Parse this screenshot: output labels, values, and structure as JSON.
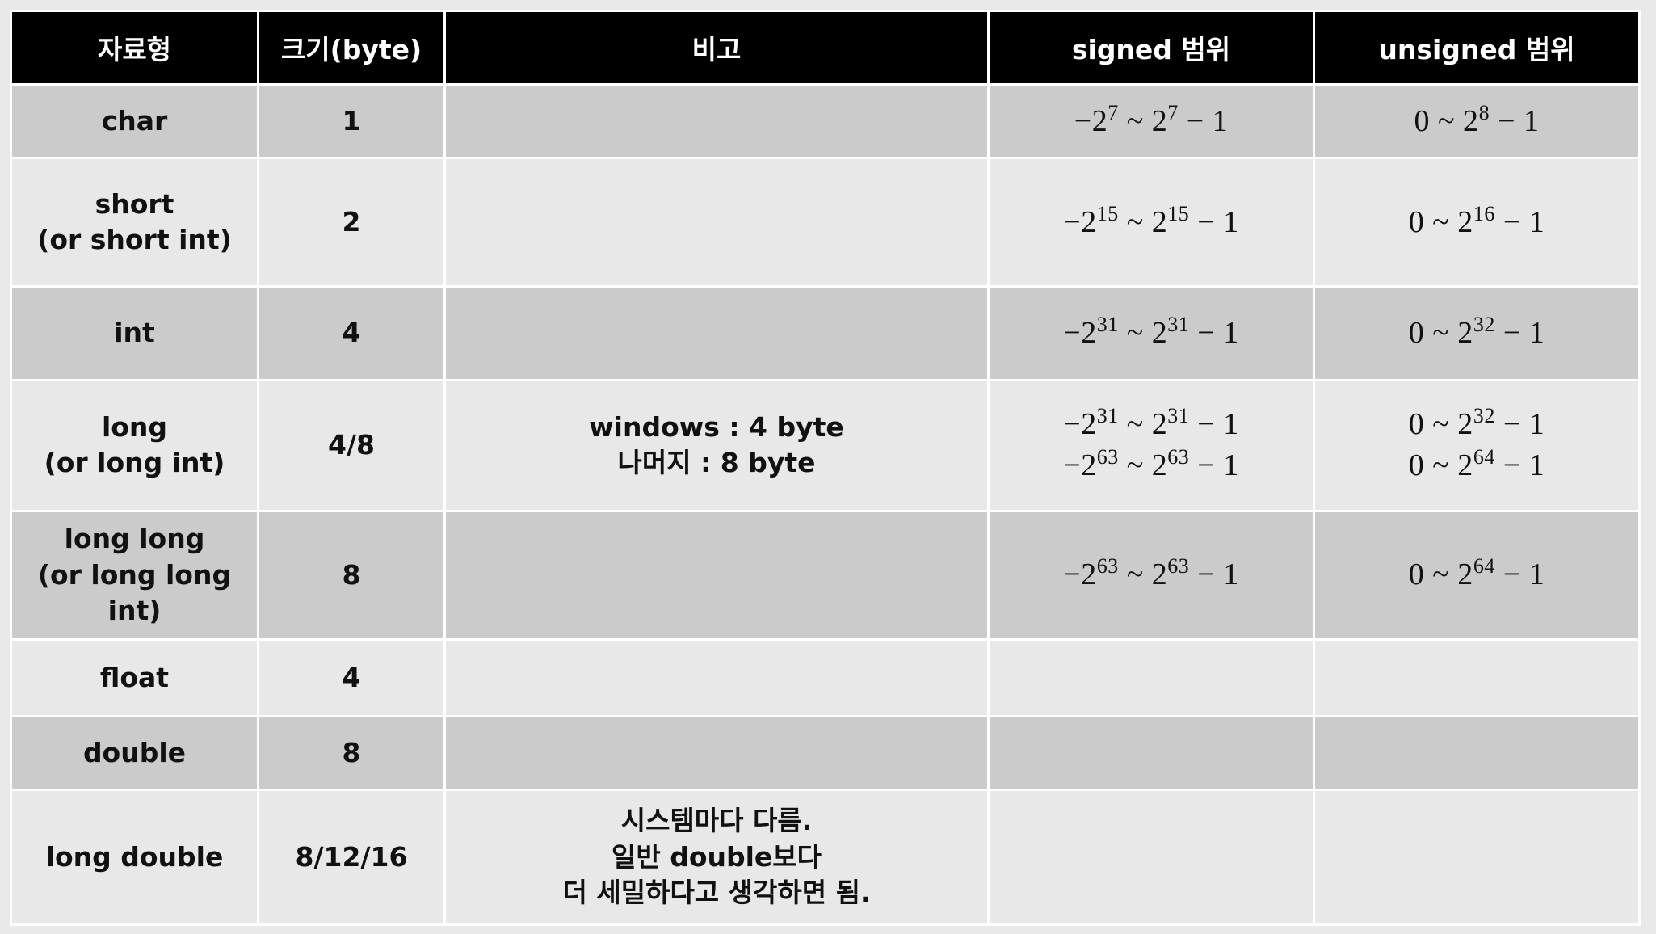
{
  "headers": [
    "자료형",
    "크기(byte)",
    "비고",
    "signed 범위",
    "unsigned 범위"
  ],
  "colors": {
    "header_bg": "#000000",
    "row_dark": "#cbcbcb",
    "row_light": "#e8e8e8",
    "border": "#ffffff"
  },
  "rows": [
    {
      "type": [
        "char"
      ],
      "size": "1",
      "note": [],
      "signed": [
        "−2^7 ~ 2^7 − 1"
      ],
      "unsigned": [
        "0 ~ 2^8 − 1"
      ]
    },
    {
      "type": [
        "short",
        "(or short int)"
      ],
      "size": "2",
      "note": [],
      "signed": [
        "−2^15 ~ 2^15 − 1"
      ],
      "unsigned": [
        "0 ~ 2^16 − 1"
      ]
    },
    {
      "type": [
        "int"
      ],
      "size": "4",
      "note": [],
      "signed": [
        "−2^31 ~ 2^31 − 1"
      ],
      "unsigned": [
        "0 ~ 2^32 − 1"
      ]
    },
    {
      "type": [
        "long",
        "(or long int)"
      ],
      "size": "4/8",
      "note": [
        "windows : 4 byte",
        "나머지 : 8 byte"
      ],
      "signed": [
        "−2^31 ~ 2^31 − 1",
        "−2^63 ~ 2^63 − 1"
      ],
      "unsigned": [
        "0 ~ 2^32 − 1",
        "0 ~ 2^64 − 1"
      ]
    },
    {
      "type": [
        "long long",
        "(or long long int)"
      ],
      "size": "8",
      "note": [],
      "signed": [
        "−2^63 ~ 2^63 − 1"
      ],
      "unsigned": [
        "0 ~ 2^64 − 1"
      ]
    },
    {
      "type": [
        "float"
      ],
      "size": "4",
      "note": [],
      "signed": [],
      "unsigned": []
    },
    {
      "type": [
        "double"
      ],
      "size": "8",
      "note": [],
      "signed": [],
      "unsigned": []
    },
    {
      "type": [
        "long double"
      ],
      "size": "8/12/16",
      "note": [
        "시스템마다 다름.",
        "일반 double보다",
        "더 세밀하다고 생각하면 됨."
      ],
      "signed": [],
      "unsigned": []
    }
  ]
}
